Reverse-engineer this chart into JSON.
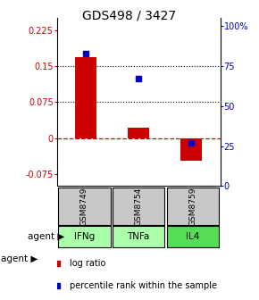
{
  "title": "GDS498 / 3427",
  "samples": [
    "GSM8749",
    "GSM8754",
    "GSM8759"
  ],
  "agents": [
    "IFNg",
    "TNFa",
    "IL4"
  ],
  "log_ratios": [
    0.168,
    0.022,
    -0.048
  ],
  "percentile_ranks": [
    83,
    67,
    27
  ],
  "ylim_left": [
    -0.1,
    0.25
  ],
  "ylim_right": [
    0,
    105
  ],
  "yticks_left": [
    -0.075,
    0,
    0.075,
    0.15,
    0.225
  ],
  "ytick_labels_left": [
    "-0.075",
    "0",
    "0.075",
    "0.15",
    "0.225"
  ],
  "yticks_right": [
    0,
    25,
    50,
    75,
    100
  ],
  "ytick_labels_right": [
    "0",
    "25",
    "50",
    "75",
    "100%"
  ],
  "hlines": [
    0.075,
    0.15
  ],
  "bar_color": "#cc0000",
  "dot_color": "#0000cc",
  "zero_line_color": "#cc0000",
  "bg_color": "#ffffff",
  "gray_cell_color": "#c8c8c8",
  "light_green_color": "#aaffaa",
  "green_color": "#55dd55",
  "title_fontsize": 10,
  "tick_fontsize": 7,
  "legend_fontsize": 7,
  "bar_width": 0.4,
  "xlim": [
    -0.55,
    2.55
  ]
}
